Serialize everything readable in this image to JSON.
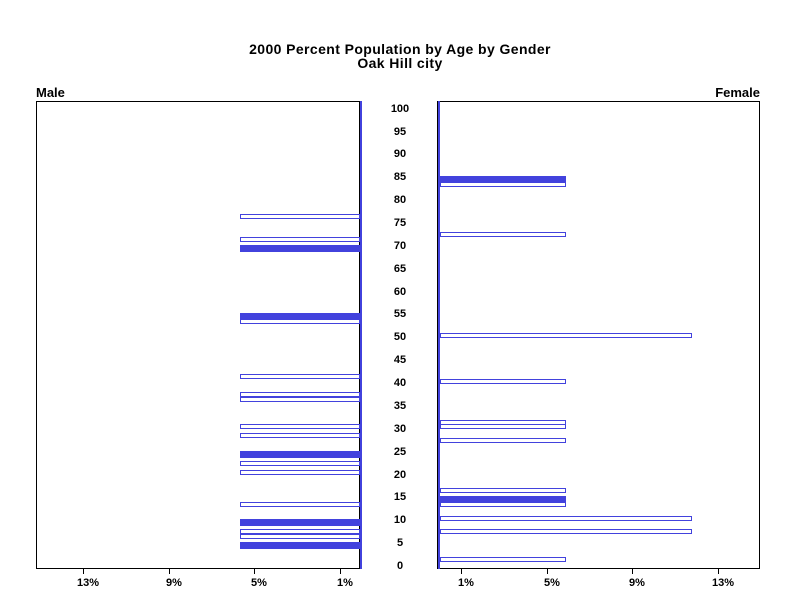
{
  "title": {
    "line1": "2000 Percent Population by Age by Gender",
    "line2": "Oak Hill city"
  },
  "chart_data": {
    "type": "bar",
    "subtype": "population-pyramid",
    "title": "2000 Percent Population by Age by Gender",
    "subtitle": "Oak Hill city",
    "orientation": "horizontal back-to-back panels, male bars grow leftward, female bars grow rightward",
    "grid": false,
    "legend": false,
    "colors": {
      "bar": "#4242DD",
      "frame": "#000000",
      "text": "#000000",
      "background": "#FFFFFF"
    },
    "fill_rule": "bars at ages divisible by 5 are solid blue; all other ages are hollow with blue outline",
    "age_axis": {
      "min": 0,
      "max": 100,
      "step": 5,
      "tick_labels": [
        0,
        5,
        10,
        15,
        20,
        25,
        30,
        35,
        40,
        45,
        50,
        55,
        60,
        65,
        70,
        75,
        80,
        85,
        90,
        95,
        100
      ]
    },
    "pct_axis": {
      "unit": "%",
      "tick_values": [
        1,
        5,
        9,
        13
      ],
      "tick_labels": [
        "1%",
        "5%",
        "9%",
        "13%"
      ],
      "max": 15.2
    },
    "male": {
      "label": "Male",
      "bars": [
        {
          "age": 5,
          "percent": 5.6,
          "filled": true
        },
        {
          "age": 7,
          "percent": 5.6,
          "filled": false
        },
        {
          "age": 8,
          "percent": 5.6,
          "filled": false
        },
        {
          "age": 10,
          "percent": 5.6,
          "filled": true
        },
        {
          "age": 14,
          "percent": 5.6,
          "filled": false
        },
        {
          "age": 21,
          "percent": 5.6,
          "filled": false
        },
        {
          "age": 23,
          "percent": 5.6,
          "filled": false
        },
        {
          "age": 25,
          "percent": 5.6,
          "filled": true
        },
        {
          "age": 29,
          "percent": 5.6,
          "filled": false
        },
        {
          "age": 31,
          "percent": 5.6,
          "filled": false
        },
        {
          "age": 37,
          "percent": 5.6,
          "filled": false
        },
        {
          "age": 38,
          "percent": 5.6,
          "filled": false
        },
        {
          "age": 42,
          "percent": 5.6,
          "filled": false
        },
        {
          "age": 54,
          "percent": 5.6,
          "filled": false
        },
        {
          "age": 55,
          "percent": 5.6,
          "filled": true
        },
        {
          "age": 70,
          "percent": 5.6,
          "filled": true
        },
        {
          "age": 72,
          "percent": 5.6,
          "filled": false
        },
        {
          "age": 77,
          "percent": 5.6,
          "filled": false
        }
      ]
    },
    "female": {
      "label": "Female",
      "bars": [
        {
          "age": 2,
          "percent": 5.9,
          "filled": false
        },
        {
          "age": 8,
          "percent": 11.8,
          "filled": false
        },
        {
          "age": 11,
          "percent": 11.8,
          "filled": false
        },
        {
          "age": 14,
          "percent": 5.9,
          "filled": false
        },
        {
          "age": 15,
          "percent": 5.9,
          "filled": true
        },
        {
          "age": 17,
          "percent": 5.9,
          "filled": false
        },
        {
          "age": 28,
          "percent": 5.9,
          "filled": false
        },
        {
          "age": 31,
          "percent": 5.9,
          "filled": false
        },
        {
          "age": 32,
          "percent": 5.9,
          "filled": false
        },
        {
          "age": 41,
          "percent": 5.9,
          "filled": false
        },
        {
          "age": 51,
          "percent": 11.8,
          "filled": false
        },
        {
          "age": 73,
          "percent": 5.9,
          "filled": false
        },
        {
          "age": 84,
          "percent": 5.9,
          "filled": false
        },
        {
          "age": 85,
          "percent": 5.9,
          "filled": true
        }
      ]
    }
  }
}
